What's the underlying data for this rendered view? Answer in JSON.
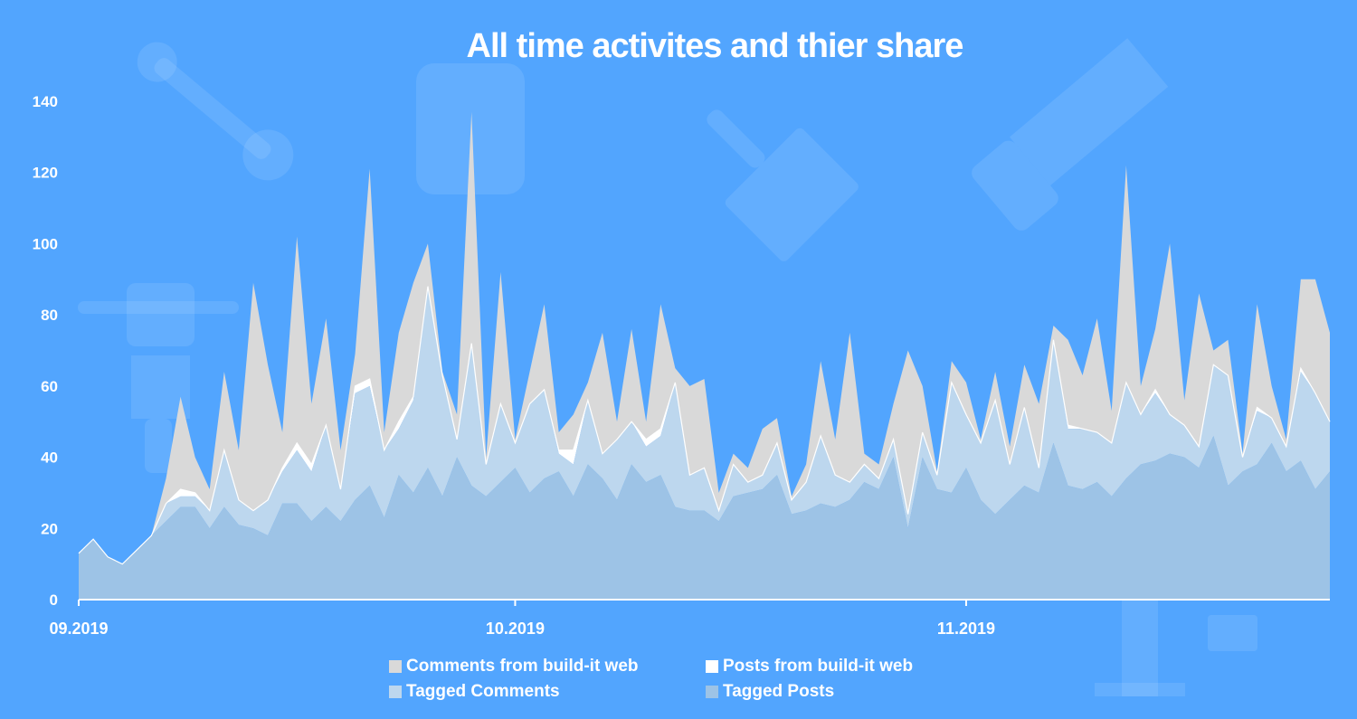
{
  "chart_data": {
    "type": "area",
    "stacked": true,
    "title": "All time activites and thier share",
    "xlabel": "",
    "ylabel": "",
    "ylim": [
      0,
      140
    ],
    "y_ticks": [
      0,
      20,
      40,
      60,
      80,
      100,
      120,
      140
    ],
    "x_ticks": [
      {
        "label": "09.2019",
        "index": 0
      },
      {
        "label": "10.2019",
        "index": 30
      },
      {
        "label": "11.2019",
        "index": 61
      }
    ],
    "grid": false,
    "legend_position": "bottom",
    "series": [
      {
        "name": "Tagged Posts",
        "color": "#9dc3e6",
        "values": [
          13,
          17,
          12,
          10,
          14,
          18,
          22,
          26,
          26,
          20,
          26,
          21,
          20,
          18,
          27,
          27,
          22,
          26,
          22,
          28,
          32,
          23,
          35,
          30,
          37,
          29,
          40,
          32,
          29,
          33,
          37,
          30,
          34,
          36,
          29,
          38,
          34,
          28,
          38,
          33,
          35,
          26,
          25,
          25,
          22,
          29,
          30,
          31,
          35,
          24,
          25,
          27,
          26,
          28,
          33,
          31,
          40,
          20,
          40,
          31,
          30,
          37,
          28,
          24,
          28,
          32,
          30,
          44,
          32,
          31,
          33,
          29,
          34,
          38,
          39,
          41,
          40,
          37,
          46,
          32,
          36,
          38,
          44,
          36,
          39,
          31,
          36
        ]
      },
      {
        "name": "Tagged Comments",
        "color": "#bdd7ee",
        "values": [
          0,
          0,
          0,
          0,
          0,
          0,
          5,
          3,
          3,
          5,
          16,
          7,
          5,
          10,
          9,
          15,
          14,
          23,
          9,
          30,
          28,
          19,
          13,
          26,
          51,
          34,
          5,
          40,
          9,
          22,
          7,
          25,
          25,
          5,
          9,
          18,
          7,
          17,
          12,
          10,
          11,
          35,
          10,
          12,
          3,
          9,
          3,
          4,
          9,
          4,
          8,
          19,
          9,
          5,
          5,
          3,
          5,
          4,
          7,
          4,
          31,
          15,
          16,
          32,
          10,
          22,
          7,
          29,
          16,
          17,
          14,
          15,
          27,
          14,
          19,
          11,
          9,
          6,
          20,
          31,
          4,
          15,
          7,
          7,
          25,
          27,
          14
        ]
      },
      {
        "name": "Posts from build-it web",
        "color": "#ffffff",
        "values": [
          0,
          0,
          0,
          0,
          0,
          0,
          0,
          2,
          1,
          0,
          0,
          0,
          0,
          0,
          1,
          2,
          2,
          0,
          0,
          2,
          2,
          0,
          2,
          1,
          0,
          0,
          0,
          0,
          0,
          0,
          0,
          0,
          0,
          1,
          4,
          0,
          0,
          0,
          0,
          2,
          2,
          0,
          0,
          0,
          0,
          0,
          0,
          0,
          0,
          0,
          0,
          0,
          0,
          0,
          0,
          0,
          0,
          0,
          0,
          0,
          0,
          0,
          0,
          0,
          0,
          0,
          0,
          0,
          1,
          0,
          0,
          0,
          0,
          0,
          1,
          0,
          0,
          0,
          0,
          0,
          0,
          1,
          0,
          0,
          1,
          0,
          0
        ]
      },
      {
        "name": "Comments from build-it web",
        "color": "#d9d9d9",
        "values": [
          0,
          0,
          0,
          0,
          0,
          0,
          7,
          26,
          10,
          6,
          22,
          14,
          64,
          38,
          10,
          58,
          17,
          30,
          11,
          9,
          59,
          5,
          25,
          32,
          12,
          1,
          7,
          65,
          2,
          37,
          1,
          9,
          24,
          5,
          10,
          5,
          34,
          5,
          26,
          5,
          35,
          4,
          25,
          25,
          5,
          3,
          4,
          13,
          7,
          1,
          5,
          21,
          10,
          42,
          3,
          4,
          10,
          46,
          13,
          1,
          6,
          9,
          1,
          8,
          5,
          12,
          18,
          4,
          24,
          15,
          32,
          9,
          61,
          8,
          17,
          48,
          7,
          43,
          4,
          10,
          1,
          29,
          9,
          2,
          25,
          32,
          25
        ]
      }
    ]
  },
  "legend": [
    {
      "name": "Comments from build-it web",
      "color": "#d9d9d9"
    },
    {
      "name": "Posts from build-it web",
      "color": "#ffffff"
    },
    {
      "name": "Tagged Comments",
      "color": "#bdd7ee"
    },
    {
      "name": "Tagged Posts",
      "color": "#9dc3e6"
    }
  ],
  "background_color": "#52a5fe"
}
